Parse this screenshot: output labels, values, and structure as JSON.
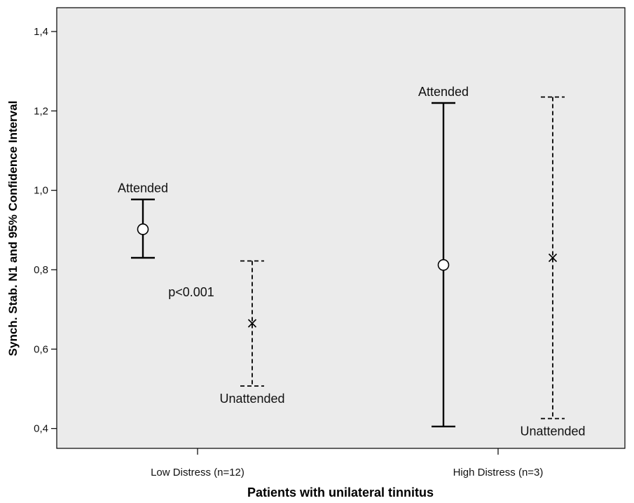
{
  "chart_data": {
    "type": "errorbar",
    "xlabel": "Patients with unilateral tinnitus",
    "ylabel": "Synch. Stab. N1 and 95% Confidence Interval",
    "ylim": [
      0.35,
      1.46
    ],
    "yticks": [
      0.4,
      0.6,
      0.8,
      1.0,
      1.2,
      1.4
    ],
    "ytick_labels": [
      "0,4",
      "0,6",
      "0,8",
      "1,0",
      "1,2",
      "1,4"
    ],
    "categories": [
      "Low Distress (n=12)",
      "High Distress (n=3)"
    ],
    "grid": false,
    "background": "#ebebeb",
    "series": [
      {
        "key": "attended",
        "marker": "circle",
        "line": "solid",
        "points": [
          {
            "category": "Low Distress (n=12)",
            "mean": 0.902,
            "lower": 0.83,
            "upper": 0.977,
            "label": "Attended"
          },
          {
            "category": "High Distress (n=3)",
            "mean": 0.812,
            "lower": 0.405,
            "upper": 1.22,
            "label": "Attended"
          }
        ]
      },
      {
        "key": "unattended",
        "marker": "x",
        "line": "dashed",
        "points": [
          {
            "category": "Low Distress (n=12)",
            "mean": 0.665,
            "lower": 0.507,
            "upper": 0.822,
            "label": "Unattended"
          },
          {
            "category": "High Distress (n=3)",
            "mean": 0.83,
            "lower": 0.425,
            "upper": 1.235,
            "label": "Unattended"
          }
        ]
      }
    ],
    "annotations": [
      {
        "text": "p<0.001",
        "category": "Low Distress (n=12)",
        "y": 0.745
      }
    ]
  }
}
